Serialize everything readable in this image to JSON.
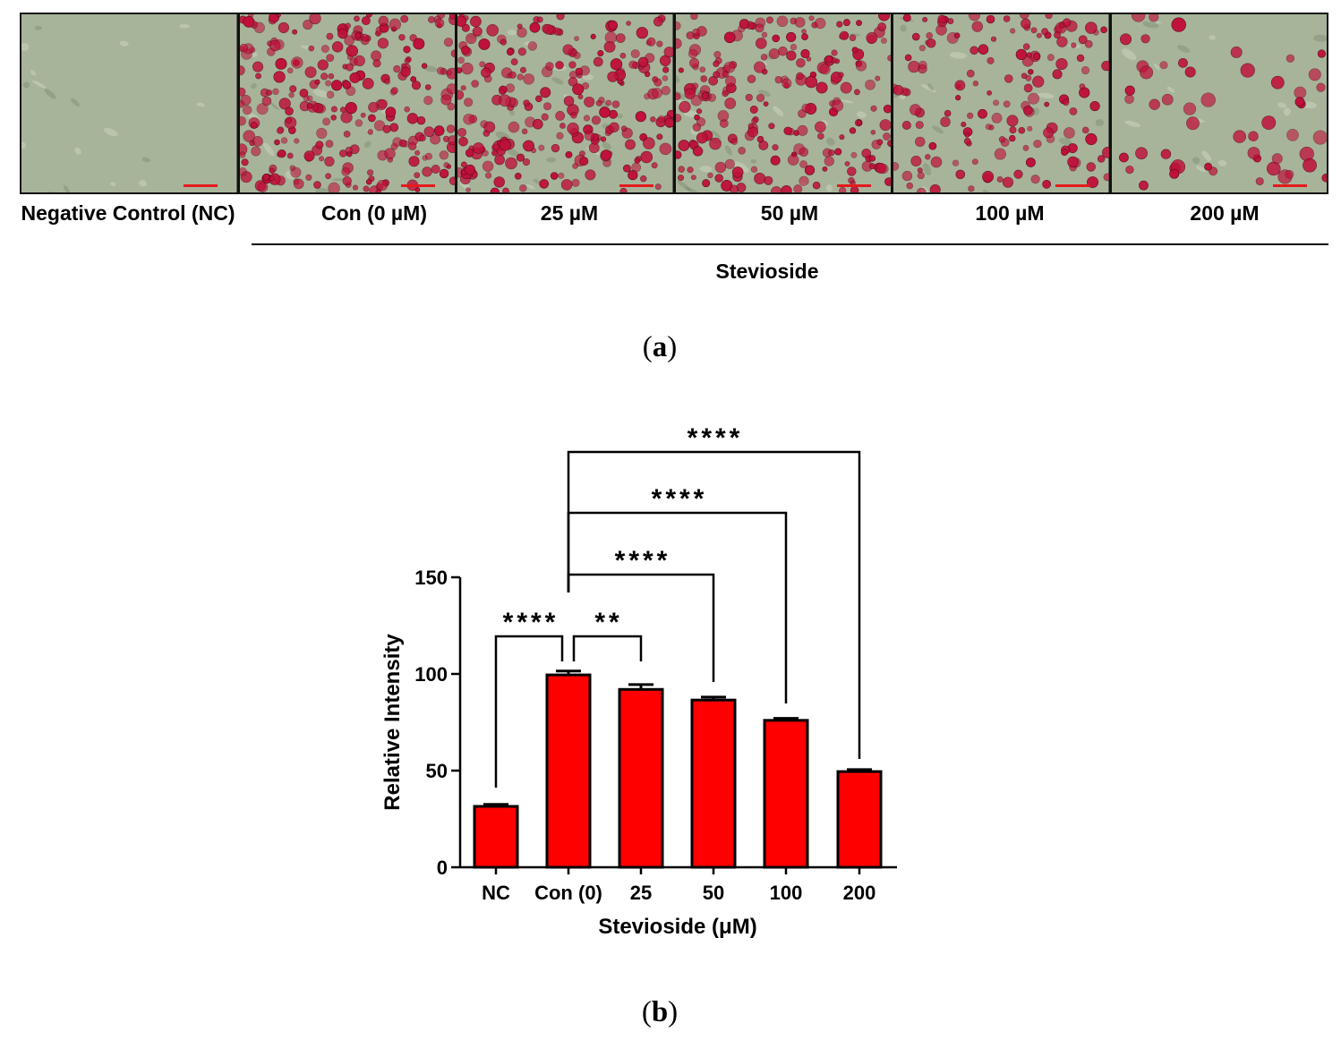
{
  "panel_a": {
    "letter": "a",
    "images": [
      {
        "label": "Negative Control (NC)",
        "stain_level": 0.0
      },
      {
        "label": "Con (0 µM)",
        "stain_level": 1.0
      },
      {
        "label": "25 µM",
        "stain_level": 0.9
      },
      {
        "label": "50 µM",
        "stain_level": 0.85
      },
      {
        "label": "100 µM",
        "stain_level": 0.6
      },
      {
        "label": "200 µM",
        "stain_level": 0.2
      }
    ],
    "group_label": "Stevioside",
    "colors": {
      "stain": "#c0103a",
      "scale_bar": "#e41a1c",
      "background_cells": "#a8b49a"
    }
  },
  "panel_b": {
    "letter": "b"
  },
  "chart_data": {
    "type": "bar",
    "categories": [
      "NC",
      "Con (0)",
      "25",
      "50",
      "100",
      "200"
    ],
    "values": [
      31.5,
      99.5,
      92,
      86.5,
      76,
      49.5
    ],
    "errors": [
      1,
      2,
      2.5,
      1.5,
      1,
      1
    ],
    "xlabel": "Stevioside (μM)",
    "ylabel": "Relative Intensity",
    "ylim": [
      0,
      150
    ],
    "yticks": [
      "0",
      "50",
      "100",
      "150"
    ],
    "bar_color": "#ff0000",
    "significance": [
      {
        "from": "NC",
        "to": "Con (0)",
        "label": "****"
      },
      {
        "from": "Con (0)",
        "to": "25",
        "label": "**"
      },
      {
        "from": "Con (0)",
        "to": "50",
        "label": "****"
      },
      {
        "from": "Con (0)",
        "to": "100",
        "label": "****"
      },
      {
        "from": "Con (0)",
        "to": "200",
        "label": "****"
      }
    ]
  }
}
